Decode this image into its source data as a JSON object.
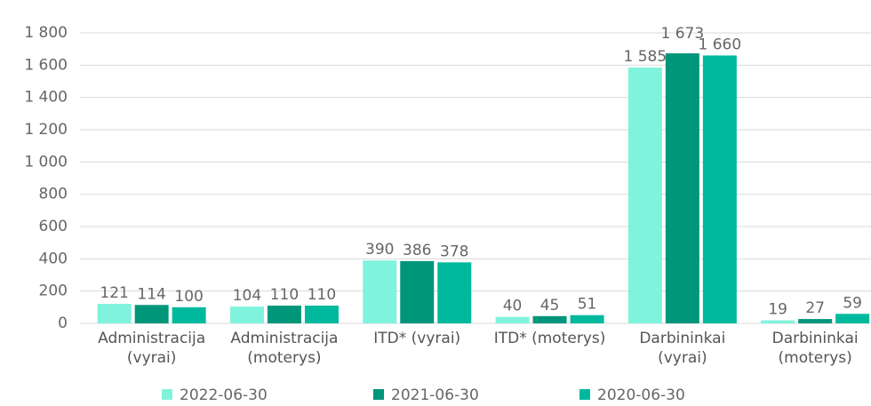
{
  "chart_data": {
    "type": "bar",
    "categories": [
      "Administracija\n(vyrai)",
      "Administracija\n(moterys)",
      "ITD* (vyrai)",
      "ITD* (moterys)",
      "Darbininkai\n(vyrai)",
      "Darbininkai\n(moterys)"
    ],
    "series": [
      {
        "name": "2022-06-30",
        "color": "#80f3dc",
        "values": [
          121,
          104,
          390,
          40,
          1585,
          19
        ],
        "value_labels": [
          "121",
          "104",
          "390",
          "40",
          "1 585",
          "19"
        ]
      },
      {
        "name": "2021-06-30",
        "color": "#00967a",
        "values": [
          114,
          110,
          386,
          45,
          1673,
          27
        ],
        "value_labels": [
          "114",
          "110",
          "386",
          "45",
          "1 673",
          "27"
        ]
      },
      {
        "name": "2020-06-30",
        "color": "#00b99d",
        "values": [
          100,
          110,
          378,
          51,
          1660,
          59
        ],
        "value_labels": [
          "100",
          "110",
          "378",
          "51",
          "1 660",
          "59"
        ]
      }
    ],
    "ylim": [
      0,
      1800
    ],
    "yticks": [
      0,
      200,
      400,
      600,
      800,
      {
        "value": 1000,
        "label": "1 000"
      },
      {
        "value": 1200,
        "label": "1 200"
      },
      {
        "value": 1400,
        "label": "1 400"
      },
      {
        "value": 1600,
        "label": "1 600"
      },
      {
        "value": 1800,
        "label": "1 800"
      }
    ],
    "grid": true,
    "legend": "bottom"
  }
}
